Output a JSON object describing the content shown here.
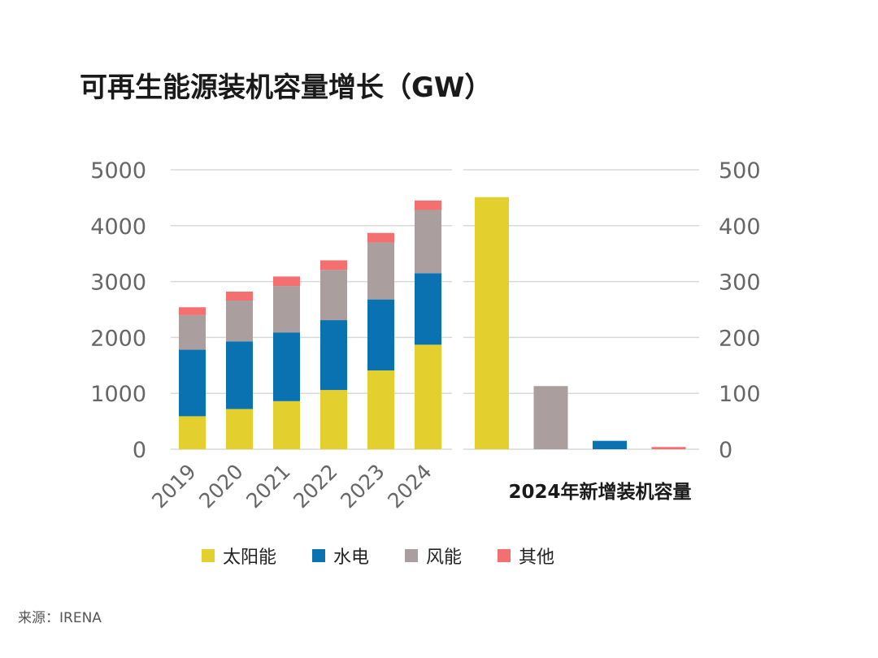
{
  "title": "可再生能源装机容量增长（GW）",
  "source": "来源：IRENA",
  "colors": {
    "solar": "#e3cf2e",
    "hydro": "#0a72b0",
    "wind": "#aa9e9e",
    "other": "#f47070",
    "grid": "#d9d9d9",
    "axis_text": "#666666"
  },
  "chart_data": [
    {
      "type": "bar",
      "stacked": true,
      "categories": [
        "2019",
        "2020",
        "2021",
        "2022",
        "2023",
        "2024"
      ],
      "series": [
        {
          "name": "太阳能",
          "values": [
            590,
            720,
            860,
            1060,
            1410,
            1870
          ]
        },
        {
          "name": "水电",
          "values": [
            1190,
            1210,
            1230,
            1250,
            1270,
            1280
          ]
        },
        {
          "name": "风能",
          "values": [
            620,
            730,
            830,
            900,
            1020,
            1130
          ]
        },
        {
          "name": "其他",
          "values": [
            140,
            160,
            170,
            170,
            170,
            170
          ]
        }
      ],
      "ylim": [
        0,
        5000
      ],
      "yticks": [
        0,
        1000,
        2000,
        3000,
        4000,
        5000
      ],
      "grid": true
    },
    {
      "type": "bar",
      "categories": [
        "太阳能",
        "风能",
        "水电",
        "其他"
      ],
      "values": [
        451,
        113,
        15,
        4
      ],
      "xlabel": "2024年新增装机容量",
      "ylim": [
        0,
        500
      ],
      "yticks": [
        0,
        100,
        200,
        300,
        400,
        500
      ],
      "grid": true
    }
  ],
  "legend": [
    {
      "label": "太阳能",
      "color": "#e3cf2e"
    },
    {
      "label": "水电",
      "color": "#0a72b0"
    },
    {
      "label": "风能",
      "color": "#aa9e9e"
    },
    {
      "label": "其他",
      "color": "#f47070"
    }
  ]
}
